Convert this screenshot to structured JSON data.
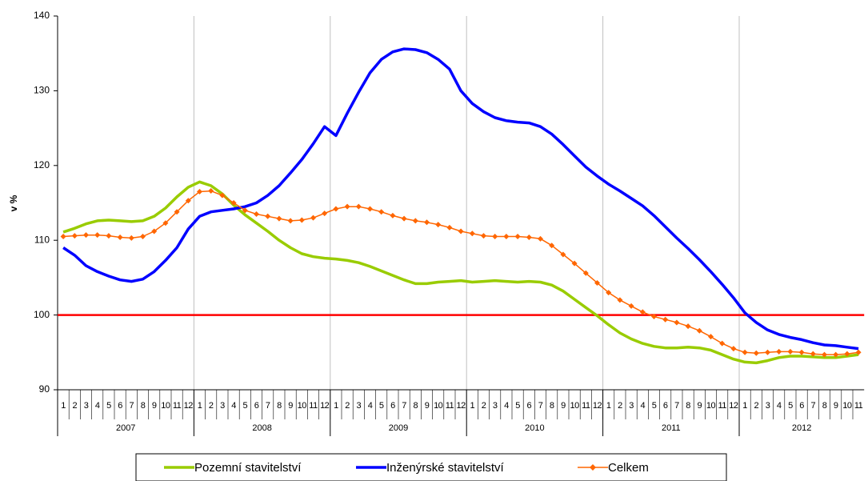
{
  "chart_data": {
    "type": "line",
    "ylabel": "v %",
    "categories": [
      "1",
      "2",
      "3",
      "4",
      "5",
      "6",
      "7",
      "8",
      "9",
      "10",
      "11",
      "12",
      "1",
      "2",
      "3",
      "4",
      "5",
      "6",
      "7",
      "8",
      "9",
      "10",
      "11",
      "12",
      "1",
      "2",
      "3",
      "4",
      "5",
      "6",
      "7",
      "8",
      "9",
      "10",
      "11",
      "12",
      "1",
      "2",
      "3",
      "4",
      "5",
      "6",
      "7",
      "8",
      "9",
      "10",
      "11",
      "12",
      "1",
      "2",
      "3",
      "4",
      "5",
      "6",
      "7",
      "8",
      "9",
      "10",
      "11",
      "12",
      "1",
      "2",
      "3",
      "4",
      "5",
      "6",
      "7",
      "8",
      "9",
      "10",
      "11"
    ],
    "category_groups": [
      "2007",
      "2008",
      "2009",
      "2010",
      "2011",
      "2012"
    ],
    "ylim": [
      90,
      140
    ],
    "yticks": [
      90,
      100,
      110,
      120,
      130,
      140
    ],
    "reference_line": {
      "value": 100,
      "color": "#ff0000"
    },
    "legend": "bottom",
    "series": [
      {
        "name": "Pozemní stavitelství",
        "color": "#99cc00",
        "values": [
          111.1,
          111.6,
          112.2,
          112.6,
          112.7,
          112.6,
          112.5,
          112.6,
          113.2,
          114.3,
          115.8,
          117.1,
          117.8,
          117.3,
          116.2,
          114.7,
          113.4,
          112.3,
          111.2,
          110.0,
          109.0,
          108.2,
          107.8,
          107.6,
          107.5,
          107.3,
          107.0,
          106.5,
          105.9,
          105.3,
          104.7,
          104.2,
          104.2,
          104.4,
          104.5,
          104.6,
          104.4,
          104.5,
          104.6,
          104.5,
          104.4,
          104.5,
          104.4,
          104.0,
          103.2,
          102.1,
          101.0,
          99.9,
          98.7,
          97.6,
          96.8,
          96.2,
          95.8,
          95.6,
          95.6,
          95.7,
          95.6,
          95.3,
          94.7,
          94.1,
          93.7,
          93.6,
          93.9,
          94.3,
          94.5,
          94.5,
          94.4,
          94.3,
          94.3,
          94.5,
          94.7
        ]
      },
      {
        "name": "Inženýrské stavitelství",
        "color": "#0000ff",
        "values": [
          109.0,
          108.0,
          106.6,
          105.8,
          105.2,
          104.7,
          104.5,
          104.8,
          105.8,
          107.3,
          109.0,
          111.5,
          113.2,
          113.8,
          114.0,
          114.2,
          114.5,
          115.0,
          116.0,
          117.3,
          119.0,
          120.8,
          122.9,
          125.2,
          124.0,
          127.0,
          129.8,
          132.4,
          134.2,
          135.2,
          135.6,
          135.5,
          135.1,
          134.2,
          132.9,
          130.0,
          128.3,
          127.2,
          126.4,
          126.0,
          125.8,
          125.7,
          125.2,
          124.2,
          122.8,
          121.3,
          119.8,
          118.6,
          117.5,
          116.6,
          115.6,
          114.6,
          113.3,
          111.8,
          110.3,
          108.9,
          107.4,
          105.8,
          104.1,
          102.3,
          100.3,
          99.0,
          98.0,
          97.4,
          97.0,
          96.7,
          96.3,
          96.0,
          95.9,
          95.7,
          95.5
        ]
      },
      {
        "name": "Celkem",
        "color": "#ff6600",
        "marker": "diamond",
        "values": [
          110.5,
          110.6,
          110.7,
          110.7,
          110.6,
          110.4,
          110.3,
          110.5,
          111.2,
          112.3,
          113.8,
          115.3,
          116.5,
          116.6,
          116.0,
          115.0,
          114.0,
          113.5,
          113.2,
          112.9,
          112.6,
          112.7,
          113.0,
          113.6,
          114.2,
          114.5,
          114.5,
          114.2,
          113.8,
          113.3,
          112.9,
          112.6,
          112.4,
          112.1,
          111.7,
          111.2,
          110.9,
          110.6,
          110.5,
          110.5,
          110.5,
          110.4,
          110.2,
          109.3,
          108.1,
          106.9,
          105.6,
          104.3,
          103.0,
          102.0,
          101.2,
          100.4,
          99.8,
          99.4,
          99.0,
          98.5,
          97.9,
          97.1,
          96.2,
          95.5,
          95.0,
          94.9,
          95.0,
          95.1,
          95.1,
          95.0,
          94.8,
          94.7,
          94.7,
          94.8,
          95.0
        ]
      }
    ]
  }
}
